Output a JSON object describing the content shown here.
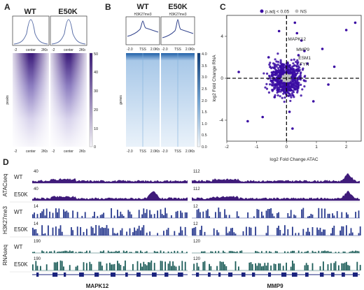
{
  "panels": {
    "a": {
      "letter": "A",
      "samples": [
        "WT",
        "E50K"
      ],
      "profile_ticks": [
        "-2",
        "center",
        "2Kb"
      ],
      "heatmap_ylabel": "peaks",
      "colorbar_ticks": [
        "50",
        "40",
        "30",
        "20",
        "10",
        "0"
      ],
      "color": "#4b2a87"
    },
    "b": {
      "letter": "B",
      "samples": [
        "WT",
        "E50K"
      ],
      "sublabels": [
        "H3K27me3",
        "H3K27me3"
      ],
      "profile_ticks": [
        "-2.0",
        "TSS",
        "2.0Kb"
      ],
      "heatmap_ylabel": "genes",
      "colorbar_ticks": [
        "4.0",
        "3.5",
        "3.0",
        "2.5",
        "2.0",
        "1.5",
        "1.0",
        "0.5",
        "0.0"
      ],
      "color": "#1f5fa8"
    },
    "c": {
      "letter": "C",
      "legend": [
        "p.adj < 0.05",
        "NS"
      ],
      "xlabel": "log2 Fold Change ATAC",
      "ylabel": "log2 Fold Change RNA",
      "genes": [
        "MAPK12",
        "MMP9",
        "ESM1",
        "FYN"
      ],
      "colors": {
        "sig": "#3a0ca3",
        "ns": "#bdbdbd"
      }
    },
    "d": {
      "letter": "D",
      "genes": [
        "MAPK12",
        "MMP9"
      ],
      "tracks": [
        {
          "group": "ATACseq",
          "color": "#3f1b7a",
          "rows": [
            {
              "label": "WT",
              "left_scale": "40",
              "right_scale": "112"
            },
            {
              "label": "E50K",
              "left_scale": "40",
              "right_scale": "112"
            }
          ]
        },
        {
          "group": "H3K27me3",
          "color": "#2a3b8f",
          "rows": [
            {
              "label": "WT",
              "left_scale": "14",
              "right_scale": "12"
            },
            {
              "label": "E50K",
              "left_scale": "14",
              "right_scale": "12"
            }
          ]
        },
        {
          "group": "RNAseq",
          "color": "#1e5e5a",
          "rows": [
            {
              "label": "WT",
              "left_scale": "190",
              "right_scale": "120"
            },
            {
              "label": "E50K",
              "left_scale": "190",
              "right_scale": "120"
            }
          ]
        }
      ]
    }
  },
  "chart_data": {
    "type": "scatter",
    "title": "",
    "xlabel": "log2 Fold Change ATAC",
    "ylabel": "log2 Fold Change RNA",
    "xlim": [
      -2,
      2.5
    ],
    "ylim": [
      -6,
      6
    ],
    "xticks": [
      -2,
      -1,
      0,
      1,
      2
    ],
    "yticks": [
      -4,
      0,
      4
    ],
    "legend_position": "top",
    "series": [
      {
        "name": "p.adj < 0.05",
        "color": "#3a0ca3",
        "points": [
          [
            0.28,
            5.3
          ],
          [
            0.35,
            4.3
          ],
          [
            0.5,
            3.6
          ],
          [
            0.4,
            2.2
          ],
          [
            0.6,
            2.6
          ],
          [
            1.2,
            2.8
          ],
          [
            2.0,
            4.6
          ],
          [
            2.3,
            5.3
          ],
          [
            -0.25,
            4.5
          ],
          [
            0.1,
            -3.2
          ],
          [
            0.2,
            -4.8
          ],
          [
            -0.8,
            -3.7
          ],
          [
            -1.3,
            -4.1
          ],
          [
            -0.6,
            2.0
          ],
          [
            0.9,
            -2.2
          ],
          [
            1.6,
            1.1
          ],
          [
            -1.6,
            0.6
          ],
          [
            0.7,
            1.4
          ],
          [
            -0.4,
            -1.8
          ],
          [
            1.4,
            -0.6
          ]
        ]
      },
      {
        "name": "NS",
        "color": "#bdbdbd",
        "points": [
          [
            0.0,
            0.0
          ],
          [
            0.05,
            0.1
          ],
          [
            -0.05,
            -0.1
          ],
          [
            0.1,
            0.05
          ],
          [
            -0.1,
            0.08
          ],
          [
            0.02,
            -0.12
          ],
          [
            0.08,
            0.14
          ]
        ]
      }
    ],
    "annotations": [
      {
        "text": "MAPK12",
        "x": 0.0,
        "y": 3.6
      },
      {
        "text": "MMP9",
        "x": 0.28,
        "y": 2.6
      },
      {
        "text": "ESM1",
        "x": 0.35,
        "y": 1.8
      },
      {
        "text": "FYN",
        "x": 0.4,
        "y": 1.2
      }
    ]
  }
}
